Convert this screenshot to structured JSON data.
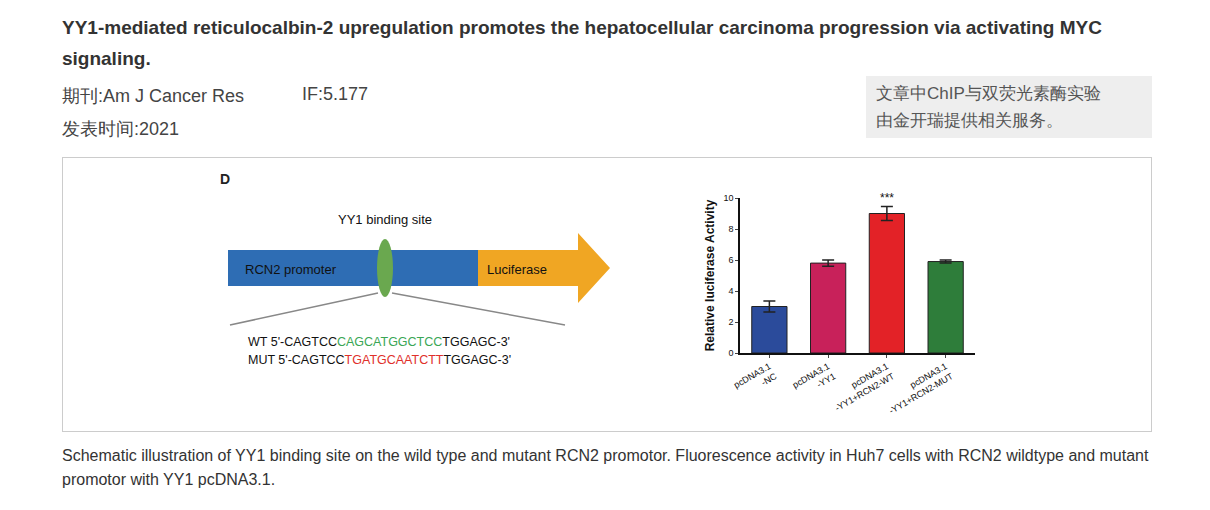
{
  "header": {
    "title": "YY1-mediated reticulocalbin-2 upregulation promotes the hepatocellular carcinoma progression via activating MYC signaling.",
    "journal": "期刊:Am J Cancer Res",
    "impact": "IF:5.177",
    "date": "发表时间:2021",
    "note": [
      "文章中ChIP与双荧光素酶实验",
      "由金开瑞提供相关服务。"
    ]
  },
  "figure": {
    "panel": "D",
    "diagram": {
      "site_label": "YY1 binding site",
      "promoter": "RCN2 promoter",
      "reporter": "Luciferase",
      "sequences": [
        {
          "prefix": "WT 5'-CAGTCC",
          "site": "CAGCATGGCTCC",
          "suffix": "TGGAGC-3'",
          "color": "#3aa655"
        },
        {
          "prefix": "MUT 5'-CAGTCC",
          "site": "TGATGCAATCTT",
          "suffix": "TGGAGC-3'",
          "color": "#e0302a"
        }
      ]
    }
  },
  "chart_data": {
    "type": "bar",
    "categories": [
      "pcDNA3.1\n-NC",
      "pcDNA3.1\n-YY1",
      "pcDNA3.1\n-YY1+RCN2-WT",
      "pcDNA3.1\n-YY1+RCN2-MUT"
    ],
    "values": [
      3.0,
      5.8,
      9.0,
      5.9
    ],
    "errors": [
      0.35,
      0.2,
      0.45,
      0.1
    ],
    "colors": [
      "#2b4b9b",
      "#c8215a",
      "#e32227",
      "#2e7d3a"
    ],
    "ylabel": "Relative luciferase Activity",
    "ylim": [
      0,
      10
    ],
    "yticks": [
      0,
      2,
      4,
      6,
      8,
      10
    ],
    "annotations": [
      {
        "category": "pcDNA3.1\n-YY1+RCN2-WT",
        "text": "***"
      }
    ],
    "grid": false
  },
  "caption": "Schematic illustration of YY1 binding site on the wild type and mutant RCN2 promotor. Fluorescence activity in Huh7 cells with RCN2 wildtype and mutant promotor with YY1 pcDNA3.1."
}
